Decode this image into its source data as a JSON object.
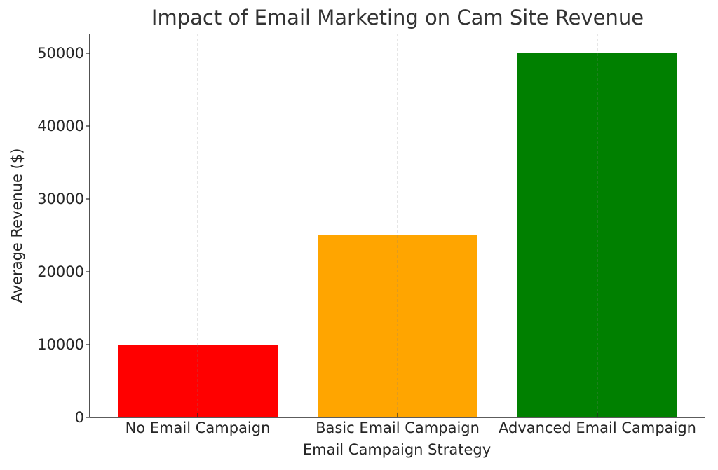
{
  "chart_data": {
    "type": "bar",
    "title": "Impact of Email Marketing on Cam Site Revenue",
    "xlabel": "Email Campaign Strategy",
    "ylabel": "Average Revenue ($)",
    "categories": [
      "No Email Campaign",
      "Basic Email Campaign",
      "Advanced Email Campaign"
    ],
    "values": [
      10000,
      25000,
      50000
    ],
    "colors": [
      "#ff0000",
      "#ffa500",
      "#008000"
    ],
    "ylim": [
      0,
      52500
    ],
    "yticks": [
      0,
      10000,
      20000,
      30000,
      40000,
      50000
    ],
    "ytick_labels": [
      "0",
      "10000",
      "20000",
      "30000",
      "40000",
      "50000"
    ],
    "grid": {
      "x": true,
      "y": false,
      "style": "dashed",
      "color": "#cccccc"
    },
    "legend": null
  }
}
